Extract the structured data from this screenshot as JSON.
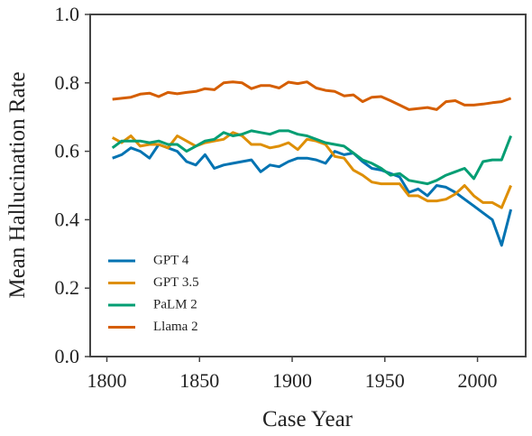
{
  "chart_data": {
    "type": "line",
    "x_label": "Case Year",
    "y_label": "Mean Hallucination Rate",
    "x": [
      1803,
      1808,
      1813,
      1818,
      1823,
      1828,
      1833,
      1838,
      1843,
      1848,
      1853,
      1858,
      1863,
      1868,
      1873,
      1878,
      1883,
      1888,
      1893,
      1898,
      1903,
      1908,
      1913,
      1918,
      1923,
      1928,
      1933,
      1938,
      1943,
      1948,
      1953,
      1958,
      1963,
      1968,
      1973,
      1978,
      1983,
      1988,
      1993,
      1998,
      2003,
      2008,
      2013,
      2018
    ],
    "series": [
      {
        "name": "GPT 4",
        "color": "#0173b2",
        "values": [
          0.58,
          0.59,
          0.61,
          0.6,
          0.58,
          0.62,
          0.61,
          0.6,
          0.57,
          0.56,
          0.59,
          0.55,
          0.56,
          0.565,
          0.57,
          0.575,
          0.54,
          0.56,
          0.555,
          0.57,
          0.58,
          0.58,
          0.575,
          0.565,
          0.6,
          0.59,
          0.595,
          0.57,
          0.55,
          0.545,
          0.535,
          0.525,
          0.48,
          0.49,
          0.47,
          0.5,
          0.495,
          0.48,
          0.46,
          0.44,
          0.42,
          0.4,
          0.325,
          0.43
        ]
      },
      {
        "name": "GPT 3.5",
        "color": "#de8f05",
        "values": [
          0.64,
          0.625,
          0.645,
          0.615,
          0.62,
          0.62,
          0.61,
          0.645,
          0.63,
          0.615,
          0.625,
          0.63,
          0.635,
          0.655,
          0.645,
          0.62,
          0.62,
          0.61,
          0.615,
          0.625,
          0.605,
          0.635,
          0.63,
          0.62,
          0.585,
          0.58,
          0.545,
          0.53,
          0.51,
          0.505,
          0.505,
          0.505,
          0.47,
          0.47,
          0.455,
          0.455,
          0.46,
          0.475,
          0.5,
          0.47,
          0.45,
          0.45,
          0.435,
          0.5
        ]
      },
      {
        "name": "PaLM 2",
        "color": "#029e73",
        "values": [
          0.61,
          0.63,
          0.63,
          0.63,
          0.625,
          0.63,
          0.62,
          0.62,
          0.6,
          0.615,
          0.63,
          0.635,
          0.655,
          0.645,
          0.65,
          0.66,
          0.655,
          0.65,
          0.66,
          0.66,
          0.65,
          0.645,
          0.635,
          0.625,
          0.62,
          0.615,
          0.595,
          0.575,
          0.565,
          0.55,
          0.53,
          0.535,
          0.515,
          0.51,
          0.505,
          0.515,
          0.53,
          0.54,
          0.55,
          0.52,
          0.57,
          0.575,
          0.575,
          0.645
        ]
      },
      {
        "name": "Llama 2",
        "color": "#d55e00",
        "values": [
          0.752,
          0.755,
          0.758,
          0.767,
          0.77,
          0.76,
          0.772,
          0.768,
          0.772,
          0.775,
          0.783,
          0.78,
          0.8,
          0.803,
          0.8,
          0.783,
          0.792,
          0.792,
          0.785,
          0.802,
          0.798,
          0.803,
          0.785,
          0.778,
          0.775,
          0.762,
          0.765,
          0.745,
          0.758,
          0.76,
          0.748,
          0.735,
          0.722,
          0.725,
          0.728,
          0.722,
          0.745,
          0.748,
          0.735,
          0.735,
          0.738,
          0.742,
          0.745,
          0.755
        ]
      }
    ],
    "xlim": [
      1791,
      2026
    ],
    "xticks": [
      1800,
      1850,
      1900,
      1950,
      2000
    ],
    "ylim": [
      0,
      1
    ],
    "yticks": [
      {
        "value": 0,
        "label": "0.0"
      },
      0.2,
      0.4,
      0.6,
      0.8,
      {
        "value": 1,
        "label": "1.0"
      }
    ],
    "grid": false,
    "legend": "lower left"
  }
}
